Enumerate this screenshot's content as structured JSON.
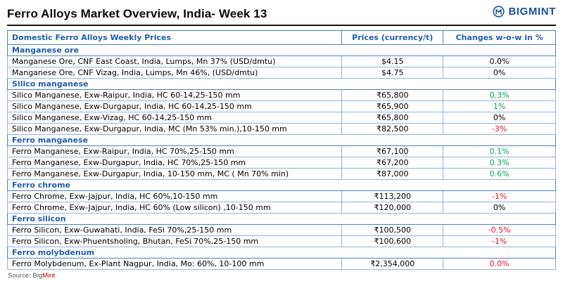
{
  "logo": {
    "text": "BIGMINT"
  },
  "title": "Ferro Alloys Market Overview, India- Week 13",
  "colors": {
    "green": "#00a651",
    "red": "#e8112d",
    "black": "#000000",
    "blue": "#1f5fa8"
  },
  "table": {
    "headers": [
      "Domestic Ferro Alloys Weekly Prices",
      "Prices (currency/t)",
      "Changes w-o-w in %"
    ],
    "sections": [
      {
        "name": "Manganese ore",
        "rows": [
          {
            "product": "Manganese Ore, CNF East Coast, India, Lumps, Mn 37% (USD/dmtu)",
            "price": "$4.15",
            "change": "0.0%",
            "change_color": "black"
          },
          {
            "product": "Manganese Ore, CNF Vizag, India, Lumps, Mn 46%, (USD/dmtu)",
            "price": "$4.75",
            "change": "0%",
            "change_color": "black"
          }
        ]
      },
      {
        "name": "Silico manganese",
        "rows": [
          {
            "product": "Silico Manganese, Exw-Raipur, India, HC 60-14,25-150 mm",
            "price": "₹65,800",
            "change": "0.3%",
            "change_color": "green"
          },
          {
            "product": "Silico Manganese, Exw-Durgapur, India, HC 60-14,25-150 mm",
            "price": "₹65,900",
            "change": "1%",
            "change_color": "green"
          },
          {
            "product": "Silico Manganese, Exw-Vizag, HC 60-14,25-150 mm",
            "price": "₹65,800",
            "change": "0%",
            "change_color": "black"
          },
          {
            "product": "Silico Manganese, Exw-Durgapur, India, MC (Mn 53% min.),10-150 mm",
            "price": "₹82,500",
            "change": "-3%",
            "change_color": "red"
          }
        ]
      },
      {
        "name": "Ferro manganese",
        "rows": [
          {
            "product": "Ferro Manganese, Exw-Raipur, India, HC 70%,25-150 mm",
            "price": "₹67,100",
            "change": "0.1%",
            "change_color": "green"
          },
          {
            "product": "Ferro Manganese, Exw-Durgapur, India, HC 70%,25-150 mm",
            "price": "₹67,200",
            "change": "0.3%",
            "change_color": "green"
          },
          {
            "product": "Ferro Manganese, Exw-Durgapur, India, 10-150 mm, MC ( Mn 70% min)",
            "price": "₹87,000",
            "change": "0.6%",
            "change_color": "green"
          }
        ]
      },
      {
        "name": "Ferro chrome",
        "rows": [
          {
            "product": "Ferro Chrome, Exw-Jajpur, India, HC 60%,10-150 mm",
            "price": "₹113,200",
            "change": "-1%",
            "change_color": "red"
          },
          {
            "product": "Ferro Chrome, Exw-Jajpur, India, HC 60% (Low silicon) ,10-150 mm",
            "price": "₹120,000",
            "change": "0%",
            "change_color": "black"
          }
        ]
      },
      {
        "name": "Ferro silicon",
        "rows": [
          {
            "product": "Ferro Silicon, Exw-Guwahati, India, FeSi 70%,25-150 mm",
            "price": "₹100,500",
            "change": "-0.5%",
            "change_color": "red"
          },
          {
            "product": "Ferro Silicon, Exw-Phuentsholing, Bhutan, FeSi 70%,25-150 mm",
            "price": "₹100,600",
            "change": "-1%",
            "change_color": "red"
          }
        ]
      },
      {
        "name": "Ferro molybdenum",
        "rows": [
          {
            "product": "Ferro Molybdenum, Ex-Plant Nagpur, India, Mo: 60%, 10-100 mm",
            "price": "₹2,354,000",
            "change": "0.0%",
            "change_color": "red"
          }
        ]
      }
    ]
  },
  "source": {
    "prefix": "Source: Big",
    "suffix": "Mint"
  }
}
